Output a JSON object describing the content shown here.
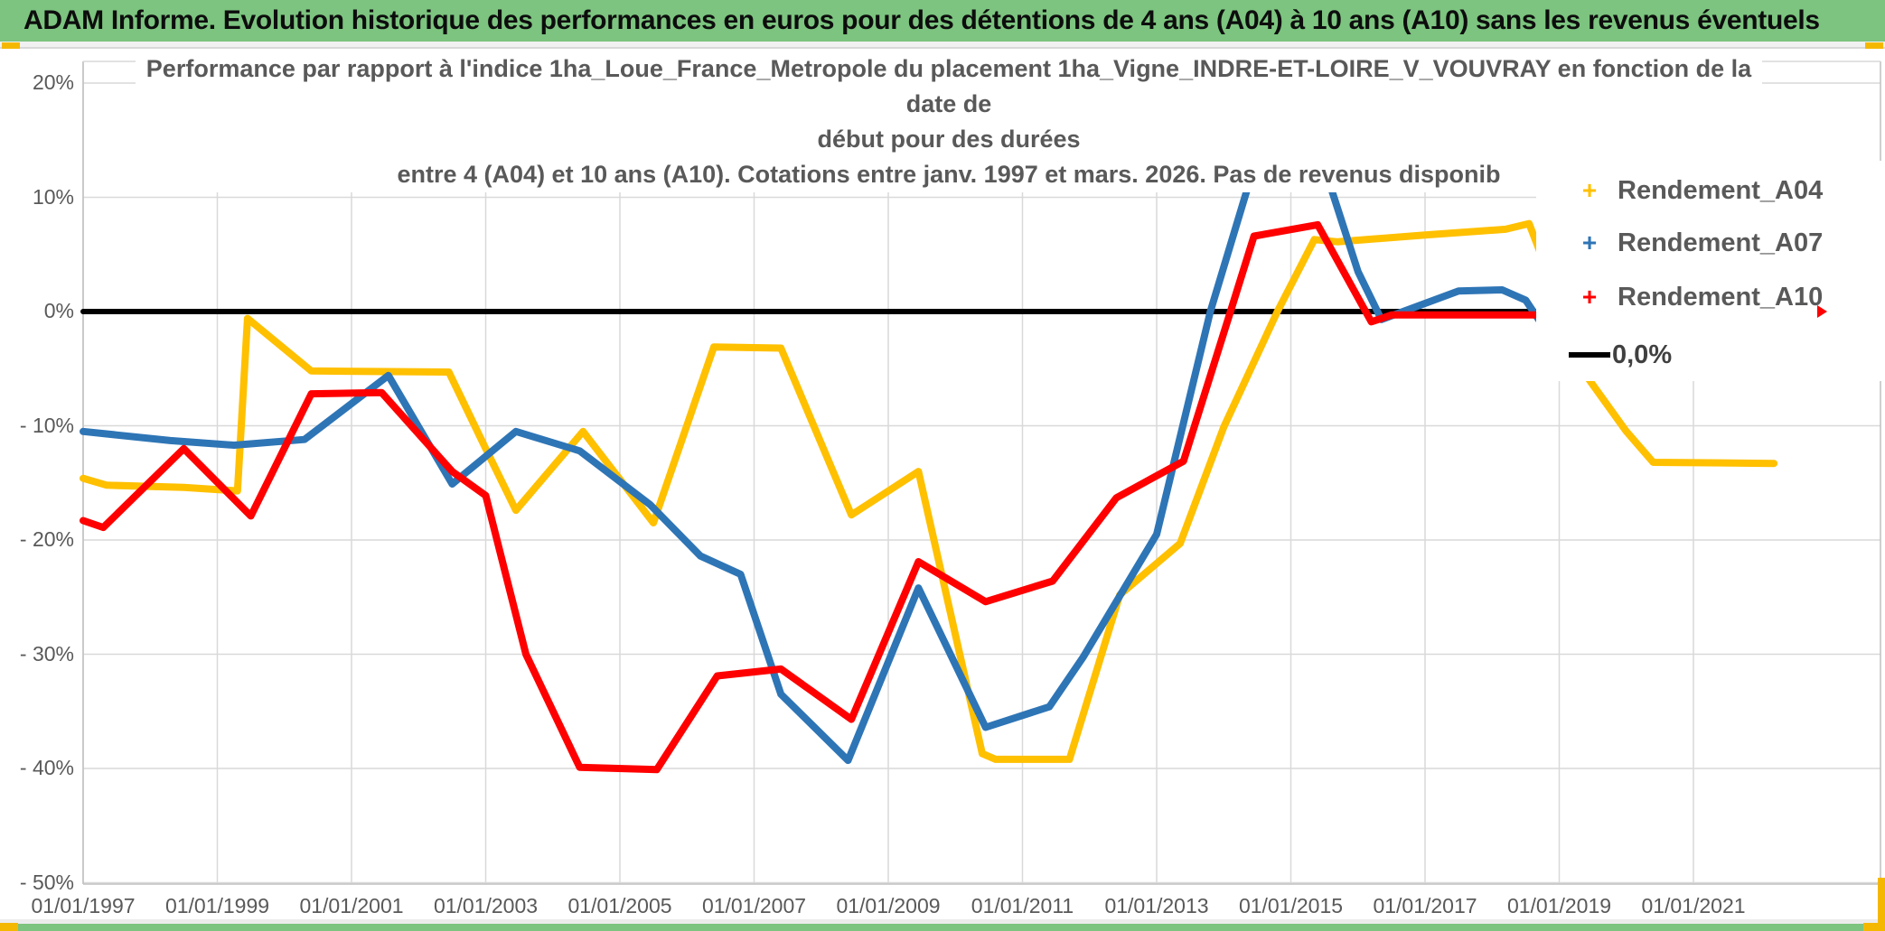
{
  "header": {
    "title": "ADAM Informe. Evolution historique des performances en euros pour des détentions de 4 ans (A04) à 10 ans (A10) sans les revenus éventuels"
  },
  "chart_data": {
    "type": "line",
    "title_lines": [
      "Performance par rapport à l'indice 1ha_Loue_France_Metropole  du placement 1ha_Vigne_INDRE-ET-LOIRE_V_VOUVRAY en fonction de la date de",
      "début pour des durées",
      "entre 4 (A04) et 10 ans (A10). Cotations entre janv. 1997 et mars. 2026. Pas de revenus disponib"
    ],
    "grid": true,
    "legend_position": "inside-right",
    "xlabel": "",
    "ylabel": "",
    "xlim_years": [
      1997.0,
      2023.8
    ],
    "ylim": [
      -50,
      21.8
    ],
    "x_ticks": [
      {
        "year": 1997,
        "label": "01/01/1997"
      },
      {
        "year": 1999,
        "label": "01/01/1999"
      },
      {
        "year": 2001,
        "label": "01/01/2001"
      },
      {
        "year": 2003,
        "label": "01/01/2003"
      },
      {
        "year": 2005,
        "label": "01/01/2005"
      },
      {
        "year": 2007,
        "label": "01/01/2007"
      },
      {
        "year": 2009,
        "label": "01/01/2009"
      },
      {
        "year": 2011,
        "label": "01/01/2011"
      },
      {
        "year": 2013,
        "label": "01/01/2013"
      },
      {
        "year": 2015,
        "label": "01/01/2015"
      },
      {
        "year": 2017,
        "label": "01/01/2017"
      },
      {
        "year": 2019,
        "label": "01/01/2019"
      },
      {
        "year": 2021,
        "label": "01/01/2021"
      }
    ],
    "y_ticks": [
      {
        "value": 20,
        "label": "20%"
      },
      {
        "value": 10,
        "label": "10%"
      },
      {
        "value": 0,
        "label": "0%"
      },
      {
        "value": -10,
        "label": "- 10%"
      },
      {
        "value": -20,
        "label": "- 20%"
      },
      {
        "value": -30,
        "label": "- 30%"
      },
      {
        "value": -40,
        "label": "- 40%"
      },
      {
        "value": -50,
        "label": "- 50%"
      }
    ],
    "series": [
      {
        "name": "Rendement_A04",
        "color": "#FFC000",
        "marker": "+",
        "points": [
          [
            1997.0,
            -14.6
          ],
          [
            1997.35,
            -15.2
          ],
          [
            1998.5,
            -15.4
          ],
          [
            1999.3,
            -15.7
          ],
          [
            1999.45,
            -0.6
          ],
          [
            2000.4,
            -5.2
          ],
          [
            2002.45,
            -5.3
          ],
          [
            2003.0,
            -12.0
          ],
          [
            2003.45,
            -17.4
          ],
          [
            2004.45,
            -10.5
          ],
          [
            2005.5,
            -18.5
          ],
          [
            2006.4,
            -3.1
          ],
          [
            2007.4,
            -3.2
          ],
          [
            2008.45,
            -17.8
          ],
          [
            2009.45,
            -14.0
          ],
          [
            2010.4,
            -38.7
          ],
          [
            2010.6,
            -39.2
          ],
          [
            2011.7,
            -39.2
          ],
          [
            2012.45,
            -24.8
          ],
          [
            2013.35,
            -20.3
          ],
          [
            2014.0,
            -10.1
          ],
          [
            2014.8,
            0.0
          ],
          [
            2015.35,
            6.3
          ],
          [
            2015.7,
            6.1
          ],
          [
            2017.0,
            6.7
          ],
          [
            2018.2,
            7.2
          ],
          [
            2018.55,
            7.7
          ],
          [
            2019.45,
            -6.0
          ],
          [
            2020.0,
            -10.5
          ],
          [
            2020.4,
            -13.2
          ],
          [
            2022.2,
            -13.3
          ]
        ]
      },
      {
        "name": "Rendement_A07",
        "color": "#2E75B6",
        "marker": "+",
        "points": [
          [
            1997.0,
            -10.5
          ],
          [
            1998.3,
            -11.3
          ],
          [
            1999.25,
            -11.7
          ],
          [
            2000.3,
            -11.2
          ],
          [
            2001.55,
            -5.6
          ],
          [
            2002.5,
            -15.1
          ],
          [
            2003.45,
            -10.5
          ],
          [
            2004.4,
            -12.2
          ],
          [
            2005.45,
            -16.9
          ],
          [
            2006.2,
            -21.4
          ],
          [
            2006.8,
            -23.0
          ],
          [
            2007.4,
            -33.5
          ],
          [
            2008.4,
            -39.3
          ],
          [
            2009.45,
            -24.2
          ],
          [
            2010.45,
            -36.4
          ],
          [
            2011.4,
            -34.6
          ],
          [
            2011.9,
            -30.3
          ],
          [
            2013.0,
            -19.5
          ],
          [
            2013.8,
            0.0
          ],
          [
            2014.4,
            11.7
          ],
          [
            2014.75,
            16.0
          ],
          [
            2015.2,
            16.0
          ],
          [
            2015.55,
            11.7
          ],
          [
            2016.0,
            3.5
          ],
          [
            2016.35,
            -0.7
          ],
          [
            2017.5,
            1.8
          ],
          [
            2018.15,
            1.9
          ],
          [
            2018.5,
            1.0
          ],
          [
            2018.75,
            -1.2
          ],
          [
            2019.25,
            -1.4
          ]
        ]
      },
      {
        "name": "Rendement_A10",
        "color": "#FF0000",
        "marker": "+",
        "points": [
          [
            1997.0,
            -18.3
          ],
          [
            1997.3,
            -18.9
          ],
          [
            1998.5,
            -12.0
          ],
          [
            1999.5,
            -17.9
          ],
          [
            2000.4,
            -7.2
          ],
          [
            2001.45,
            -7.1
          ],
          [
            2002.5,
            -14.0
          ],
          [
            2003.0,
            -16.1
          ],
          [
            2003.6,
            -30.0
          ],
          [
            2004.4,
            -39.9
          ],
          [
            2005.55,
            -40.1
          ],
          [
            2006.45,
            -31.9
          ],
          [
            2007.4,
            -31.3
          ],
          [
            2008.45,
            -35.7
          ],
          [
            2009.45,
            -21.9
          ],
          [
            2010.45,
            -25.4
          ],
          [
            2011.45,
            -23.6
          ],
          [
            2012.4,
            -16.3
          ],
          [
            2013.4,
            -13.1
          ],
          [
            2014.1,
            0.0
          ],
          [
            2014.45,
            6.6
          ],
          [
            2015.4,
            7.6
          ],
          [
            2016.2,
            -0.9
          ],
          [
            2016.5,
            -0.3
          ],
          [
            2018.7,
            -0.3
          ]
        ]
      },
      {
        "name": "0,0%",
        "color": "#000000",
        "marker": "line",
        "points": [
          [
            1997.0,
            0.0
          ],
          [
            2023.8,
            0.0
          ]
        ]
      }
    ],
    "outlier_marker": {
      "series": "Rendement_A10",
      "year": 2022.9,
      "value_pct": 0.0
    }
  },
  "legend": {
    "items": [
      {
        "label": "Rendement_A04",
        "marker": "+",
        "color": "#FFC000"
      },
      {
        "label": "Rendement_A07",
        "marker": "+",
        "color": "#2E75B6"
      },
      {
        "label": "Rendement_A10",
        "marker": "+",
        "color": "#FF0000"
      },
      {
        "label": "0,0%",
        "marker": "line",
        "color": "#000000"
      }
    ]
  }
}
